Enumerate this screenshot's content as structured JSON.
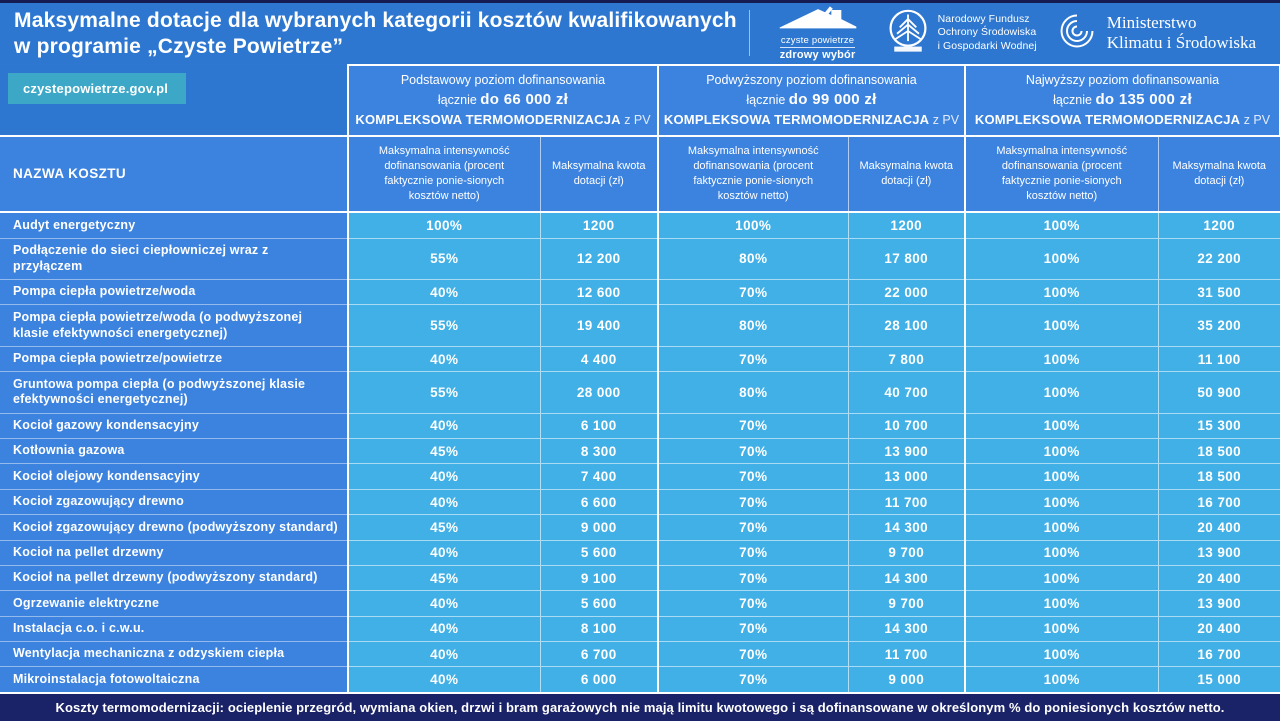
{
  "page": {
    "title": "Maksymalne dotacje dla wybranych kategorii kosztów kwalifikowanych w programie „Czyste Powietrze”",
    "site": "czystepowietrze.gov.pl",
    "footer": "Koszty termomodernizacji: ocieplenie przegród, wymiana okien, drzwi i bram garażowych nie mają limitu kwotowego i są dofinansowane w określonym % do poniesionych kosztów netto."
  },
  "logos": {
    "czyste_powietrze": {
      "line1": "czyste powietrze",
      "line2": "zdrowy wybór"
    },
    "nfosigw": {
      "line1": "Narodowy Fundusz",
      "line2": "Ochrony Środowiska",
      "line3": "i Gospodarki Wodnej"
    },
    "ministerstwo": {
      "line1": "Ministerstwo",
      "line2": "Klimatu i Środowiska"
    }
  },
  "colors": {
    "banner_blue": "#2D77D1",
    "header_cell_blue": "#3C82DF",
    "data_cell_cyan": "#41B0E6",
    "chip_teal": "#3CA7C7",
    "footer_navy": "#1A2268",
    "top_stripe_navy": "#141C52"
  },
  "chart_data": {
    "type": "table",
    "title": "Maksymalne dotacje dla wybranych kategorii kosztów kwalifikowanych w programie „Czyste Powietrze”",
    "name_header": "NAZWA KOSZTU",
    "groups": [
      {
        "level": "Podstawowy poziom dofinansowania",
        "total_prefix": "łącznie",
        "total": "do 66 000 zł",
        "komple": "KOMPLEKSOWA TERMOMODERNIZACJA",
        "pv": "z PV"
      },
      {
        "level": "Podwyższony poziom dofinansowania",
        "total_prefix": "łącznie",
        "total": "do 99 000 zł",
        "komple": "KOMPLEKSOWA TERMOMODERNIZACJA",
        "pv": "z PV"
      },
      {
        "level": "Najwyższy poziom dofinansowania",
        "total_prefix": "łącznie",
        "total": "do 135 000 zł",
        "komple": "KOMPLEKSOWA TERMOMODERNIZACJA",
        "pv": "z PV"
      }
    ],
    "sub_headers": {
      "intensity": "Maksymalna intensywność dofinansowania (procent faktycznie ponie-sionych kosztów netto)",
      "amount": "Maksymalna kwota dotacji (zł)"
    },
    "rows": [
      {
        "name": "Audyt energetyczny",
        "values": [
          "100%",
          "1200",
          "100%",
          "1200",
          "100%",
          "1200"
        ]
      },
      {
        "name": "Podłączenie do sieci ciepłowniczej wraz z przyłączem",
        "values": [
          "55%",
          "12 200",
          "80%",
          "17 800",
          "100%",
          "22 200"
        ]
      },
      {
        "name": "Pompa ciepła powietrze/woda",
        "values": [
          "40%",
          "12 600",
          "70%",
          "22 000",
          "100%",
          "31 500"
        ]
      },
      {
        "name": "Pompa ciepła powietrze/woda (o podwyższonej klasie efektywności energetycznej)",
        "values": [
          "55%",
          "19 400",
          "80%",
          "28 100",
          "100%",
          "35 200"
        ]
      },
      {
        "name": "Pompa ciepła powietrze/powietrze",
        "values": [
          "40%",
          "4 400",
          "70%",
          "7 800",
          "100%",
          "11 100"
        ]
      },
      {
        "name": "Gruntowa pompa ciepła (o podwyższonej klasie efektywności energetycznej)",
        "values": [
          "55%",
          "28 000",
          "80%",
          "40 700",
          "100%",
          "50 900"
        ]
      },
      {
        "name": "Kocioł gazowy kondensacyjny",
        "values": [
          "40%",
          "6 100",
          "70%",
          "10 700",
          "100%",
          "15 300"
        ]
      },
      {
        "name": "Kotłownia gazowa",
        "values": [
          "45%",
          "8 300",
          "70%",
          "13 900",
          "100%",
          "18 500"
        ]
      },
      {
        "name": "Kocioł olejowy kondensacyjny",
        "values": [
          "40%",
          "7 400",
          "70%",
          "13 000",
          "100%",
          "18 500"
        ]
      },
      {
        "name": "Kocioł zgazowujący drewno",
        "values": [
          "40%",
          "6 600",
          "70%",
          "11 700",
          "100%",
          "16 700"
        ]
      },
      {
        "name": "Kocioł zgazowujący drewno (podwyższony standard)",
        "values": [
          "45%",
          "9 000",
          "70%",
          "14 300",
          "100%",
          "20 400"
        ]
      },
      {
        "name": "Kocioł na pellet drzewny",
        "values": [
          "40%",
          "5 600",
          "70%",
          "9 700",
          "100%",
          "13 900"
        ]
      },
      {
        "name": "Kocioł na pellet drzewny (podwyższony standard)",
        "values": [
          "45%",
          "9 100",
          "70%",
          "14 300",
          "100%",
          "20 400"
        ]
      },
      {
        "name": "Ogrzewanie elektryczne",
        "values": [
          "40%",
          "5 600",
          "70%",
          "9 700",
          "100%",
          "13 900"
        ]
      },
      {
        "name": "Instalacja c.o. i c.w.u.",
        "values": [
          "40%",
          "8 100",
          "70%",
          "14 300",
          "100%",
          "20 400"
        ]
      },
      {
        "name": "Wentylacja mechaniczna z odzyskiem ciepła",
        "values": [
          "40%",
          "6 700",
          "70%",
          "11 700",
          "100%",
          "16 700"
        ]
      },
      {
        "name": "Mikroinstalacja fotowoltaiczna",
        "values": [
          "40%",
          "6 000",
          "70%",
          "9 000",
          "100%",
          "15 000"
        ]
      }
    ]
  }
}
